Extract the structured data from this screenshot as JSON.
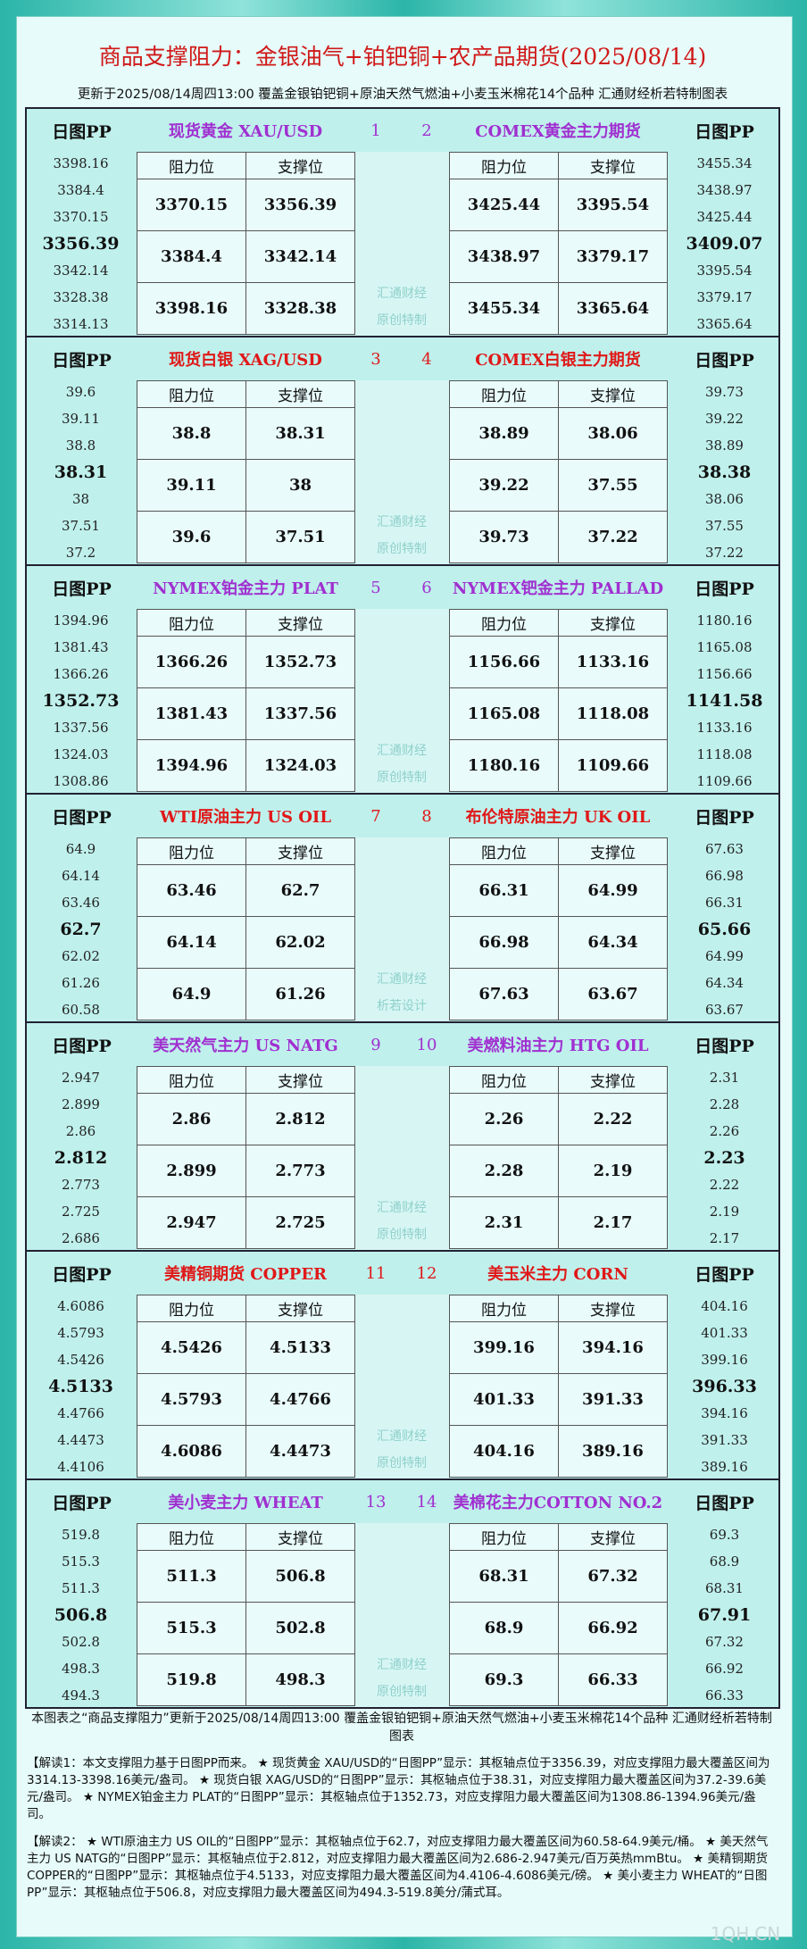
{
  "title": "商品支撑阻力：金银油气+铂钯铜+农产品期货(2025/08/14)",
  "subtitle": "更新于2025/08/14周四13:00  覆盖金银铂钯铜+原油天然气燃油+小麦玉米棉花14个品种  汇通财经析若特制图表",
  "labels": {
    "pp": "日图PP",
    "res": "阻力位",
    "sup": "支撑位"
  },
  "blocks": [
    {
      "left": {
        "name": "现货黄金 XAU/USD",
        "num": "1",
        "pp": [
          "3398.16",
          "3384.4",
          "3370.15",
          "3356.39",
          "3342.14",
          "3328.38",
          "3314.13"
        ],
        "rows": [
          [
            "3370.15",
            "3356.39"
          ],
          [
            "3384.4",
            "3342.14"
          ],
          [
            "3398.16",
            "3328.38"
          ]
        ]
      },
      "right": {
        "name": "COMEX黄金主力期货",
        "num": "2",
        "pp": [
          "3455.34",
          "3438.97",
          "3425.44",
          "3409.07",
          "3395.54",
          "3379.17",
          "3365.64"
        ],
        "rows": [
          [
            "3425.44",
            "3395.54"
          ],
          [
            "3438.97",
            "3379.17"
          ],
          [
            "3455.34",
            "3365.64"
          ]
        ]
      },
      "mark": [
        "汇通财经",
        "原创特制"
      ]
    },
    {
      "left": {
        "name": "现货白银 XAG/USD",
        "num": "3",
        "pp": [
          "39.6",
          "39.11",
          "38.8",
          "38.31",
          "38",
          "37.51",
          "37.2"
        ],
        "rows": [
          [
            "38.8",
            "38.31"
          ],
          [
            "39.11",
            "38"
          ],
          [
            "39.6",
            "37.51"
          ]
        ]
      },
      "right": {
        "name": "COMEX白银主力期货",
        "num": "4",
        "pp": [
          "39.73",
          "39.22",
          "38.89",
          "38.38",
          "38.06",
          "37.55",
          "37.22"
        ],
        "rows": [
          [
            "38.89",
            "38.06"
          ],
          [
            "39.22",
            "37.55"
          ],
          [
            "39.73",
            "37.22"
          ]
        ]
      },
      "mark": [
        "汇通财经",
        "原创特制"
      ]
    },
    {
      "left": {
        "name": "NYMEX铂金主力 PLAT",
        "num": "5",
        "pp": [
          "1394.96",
          "1381.43",
          "1366.26",
          "1352.73",
          "1337.56",
          "1324.03",
          "1308.86"
        ],
        "rows": [
          [
            "1366.26",
            "1352.73"
          ],
          [
            "1381.43",
            "1337.56"
          ],
          [
            "1394.96",
            "1324.03"
          ]
        ]
      },
      "right": {
        "name": "NYMEX钯金主力 PALLAD",
        "num": "6",
        "pp": [
          "1180.16",
          "1165.08",
          "1156.66",
          "1141.58",
          "1133.16",
          "1118.08",
          "1109.66"
        ],
        "rows": [
          [
            "1156.66",
            "1133.16"
          ],
          [
            "1165.08",
            "1118.08"
          ],
          [
            "1180.16",
            "1109.66"
          ]
        ]
      },
      "mark": [
        "汇通财经",
        "原创特制"
      ]
    },
    {
      "left": {
        "name": "WTI原油主力 US OIL",
        "num": "7",
        "pp": [
          "64.9",
          "64.14",
          "63.46",
          "62.7",
          "62.02",
          "61.26",
          "60.58"
        ],
        "rows": [
          [
            "63.46",
            "62.7"
          ],
          [
            "64.14",
            "62.02"
          ],
          [
            "64.9",
            "61.26"
          ]
        ]
      },
      "right": {
        "name": "布伦特原油主力 UK OIL",
        "num": "8",
        "pp": [
          "67.63",
          "66.98",
          "66.31",
          "65.66",
          "64.99",
          "64.34",
          "63.67"
        ],
        "rows": [
          [
            "66.31",
            "64.99"
          ],
          [
            "66.98",
            "64.34"
          ],
          [
            "67.63",
            "63.67"
          ]
        ]
      },
      "mark": [
        "汇通财经",
        "析若设计"
      ]
    },
    {
      "left": {
        "name": "美天然气主力 US NATG",
        "num": "9",
        "pp": [
          "2.947",
          "2.899",
          "2.86",
          "2.812",
          "2.773",
          "2.725",
          "2.686"
        ],
        "rows": [
          [
            "2.86",
            "2.812"
          ],
          [
            "2.899",
            "2.773"
          ],
          [
            "2.947",
            "2.725"
          ]
        ]
      },
      "right": {
        "name": "美燃料油主力 HTG OIL",
        "num": "10",
        "pp": [
          "2.31",
          "2.28",
          "2.26",
          "2.23",
          "2.22",
          "2.19",
          "2.17"
        ],
        "rows": [
          [
            "2.26",
            "2.22"
          ],
          [
            "2.28",
            "2.19"
          ],
          [
            "2.31",
            "2.17"
          ]
        ]
      },
      "mark": [
        "汇通财经",
        "原创特制"
      ]
    },
    {
      "left": {
        "name": "美精铜期货 COPPER",
        "num": "11",
        "pp": [
          "4.6086",
          "4.5793",
          "4.5426",
          "4.5133",
          "4.4766",
          "4.4473",
          "4.4106"
        ],
        "rows": [
          [
            "4.5426",
            "4.5133"
          ],
          [
            "4.5793",
            "4.4766"
          ],
          [
            "4.6086",
            "4.4473"
          ]
        ]
      },
      "right": {
        "name": "美玉米主力 CORN",
        "num": "12",
        "pp": [
          "404.16",
          "401.33",
          "399.16",
          "396.33",
          "394.16",
          "391.33",
          "389.16"
        ],
        "rows": [
          [
            "399.16",
            "394.16"
          ],
          [
            "401.33",
            "391.33"
          ],
          [
            "404.16",
            "389.16"
          ]
        ]
      },
      "mark": [
        "汇通财经",
        "原创特制"
      ]
    },
    {
      "left": {
        "name": "美小麦主力 WHEAT",
        "num": "13",
        "pp": [
          "519.8",
          "515.3",
          "511.3",
          "506.8",
          "502.8",
          "498.3",
          "494.3"
        ],
        "rows": [
          [
            "511.3",
            "506.8"
          ],
          [
            "515.3",
            "502.8"
          ],
          [
            "519.8",
            "498.3"
          ]
        ]
      },
      "right": {
        "name": "美棉花主力COTTON NO.2",
        "num": "14",
        "pp": [
          "69.3",
          "68.9",
          "68.31",
          "67.91",
          "67.32",
          "66.92",
          "66.33"
        ],
        "rows": [
          [
            "68.31",
            "67.32"
          ],
          [
            "68.9",
            "66.92"
          ],
          [
            "69.3",
            "66.33"
          ]
        ]
      },
      "mark": [
        "汇通财经",
        "原创特制"
      ]
    }
  ],
  "footer": "本图表之“商品支撑阻力”更新于2025/08/14周四13:00 覆盖金银铂钯铜+原油天然气燃油+小麦玉米棉花14个品种 汇通财经析若特制图表",
  "notes": [
    "【解读1：本文支撑阻力基于日图PP而来。 ★ 现货黄金 XAU/USD的“日图PP”显示：其枢轴点位于3356.39，对应支撑阻力最大覆盖区间为3314.13-3398.16美元/盎司。 ★ 现货白银 XAG/USD的“日图PP”显示：其枢轴点位于38.31，对应支撑阻力最大覆盖区间为37.2-39.6美元/盎司。 ★ NYMEX铂金主力 PLAT的“日图PP”显示：其枢轴点位于1352.73，对应支撑阻力最大覆盖区间为1308.86-1394.96美元/盎司。",
    "【解读2： ★ WTI原油主力 US OIL的“日图PP”显示：其枢轴点位于62.7，对应支撑阻力最大覆盖区间为60.58-64.9美元/桶。 ★ 美天然气主力 US NATG的“日图PP”显示：其枢轴点位于2.812，对应支撑阻力最大覆盖区间为2.686-2.947美元/百万英热mmBtu。 ★ 美精铜期货 COPPER的“日图PP”显示：其枢轴点位于4.5133，对应支撑阻力最大覆盖区间为4.4106-4.6086美元/磅。 ★ 美小麦主力 WHEAT的“日图PP”显示：其枢轴点位于506.8，对应支撑阻力最大覆盖区间为494.3-519.8美分/蒲式耳。"
  ],
  "watermark": "1QH.CN"
}
